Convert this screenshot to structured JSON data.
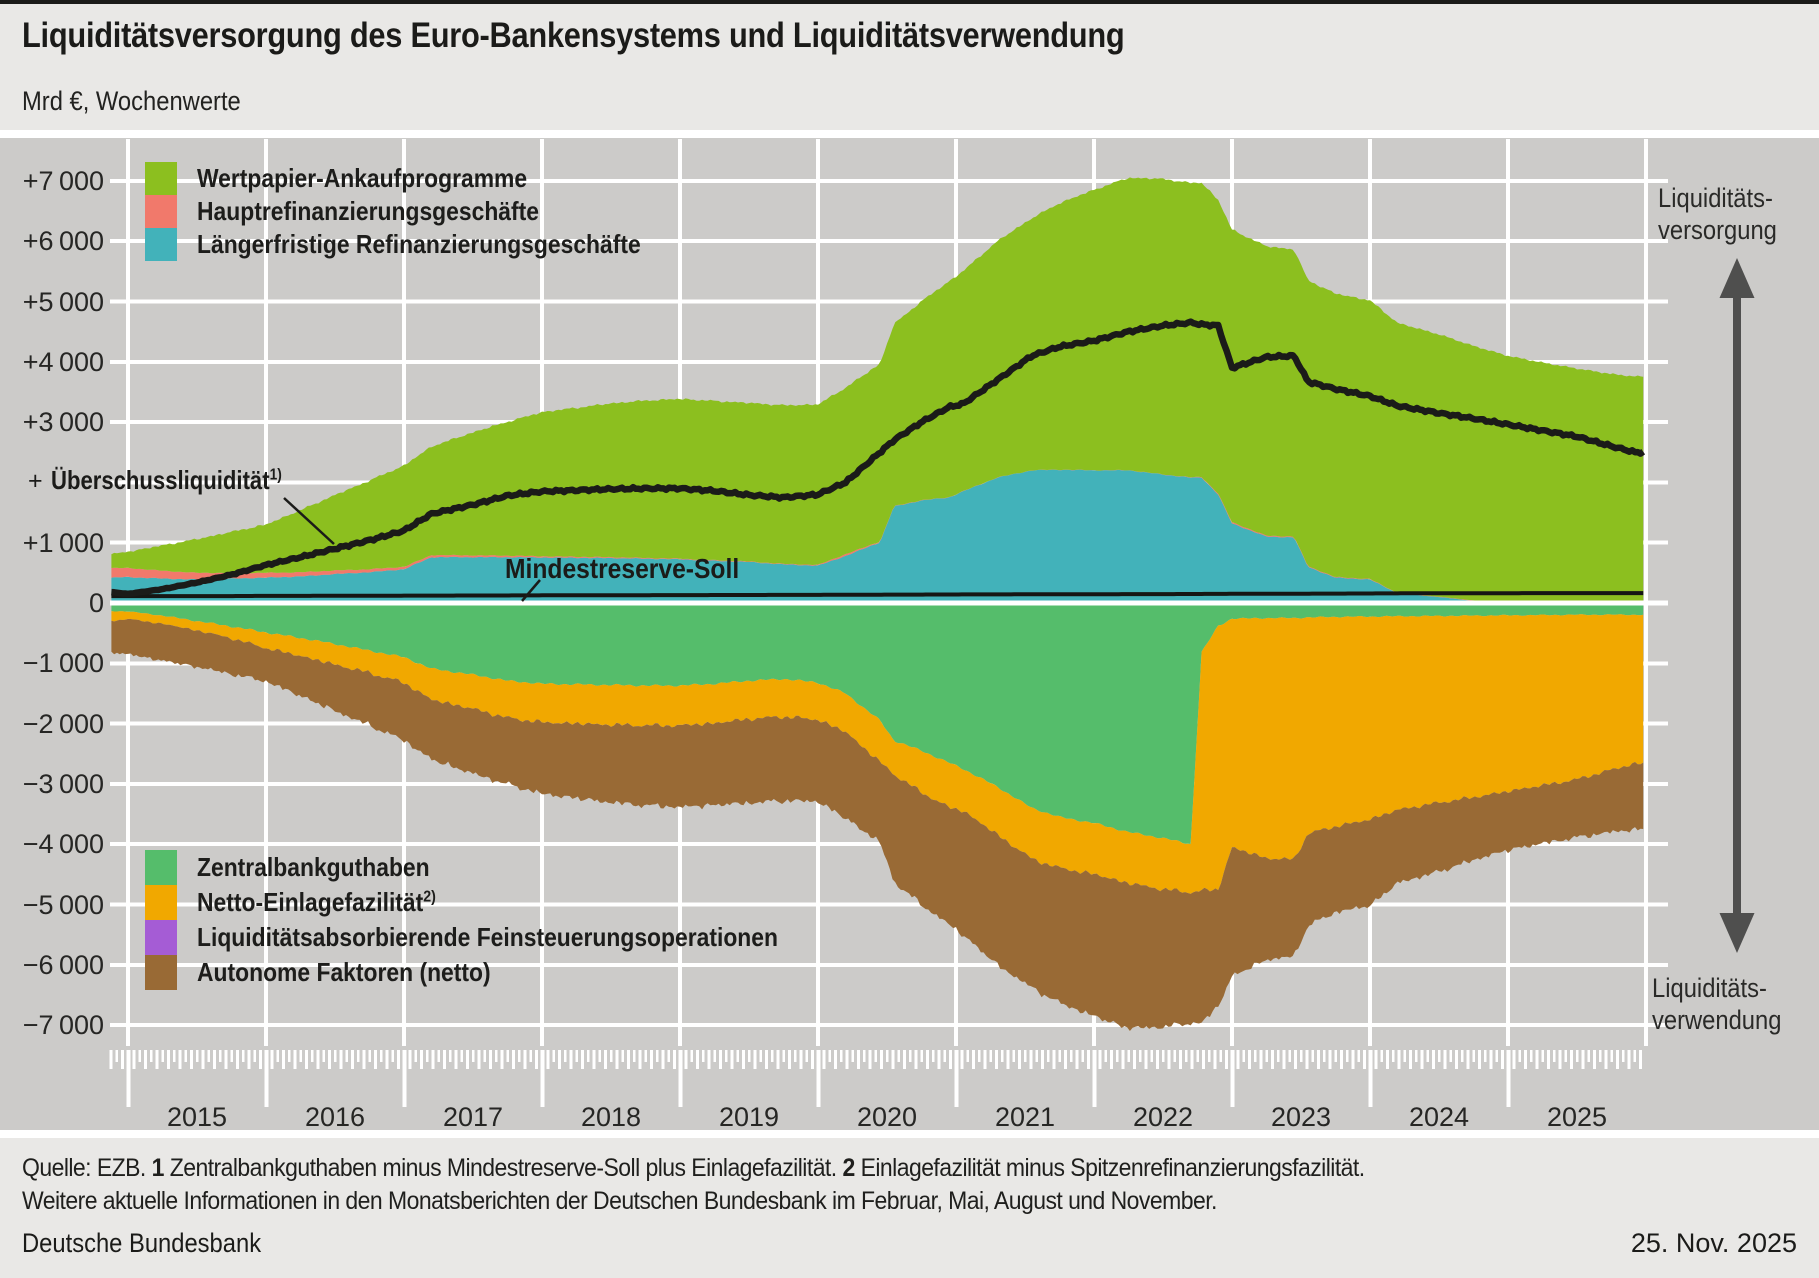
{
  "header": {
    "title": "Liquiditätsversorgung des Euro-Bankensystems und Liquiditätsverwendung",
    "subtitle": "Mrd €, Wochenwerte"
  },
  "colors": {
    "app": "#8cbf1f",
    "mro": "#f1796b",
    "ltro": "#42b2ba",
    "zbg": "#55bd6b",
    "depo": "#f1a800",
    "fine": "#a55cd5",
    "auto": "#996a35",
    "line": "#1b1b19",
    "grid": "#ffffff",
    "plot_bg": "#cccbc9",
    "panel_bg": "#e9e8e6",
    "arrow": "#4f4f4e"
  },
  "legend_top": {
    "items": [
      {
        "label": "Wertpapier-Ankaufprogramme",
        "sup": "",
        "color_key": "app"
      },
      {
        "label": "Hauptrefinanzierungsgeschäfte",
        "sup": "",
        "color_key": "mro"
      },
      {
        "label": "Längerfristige Refinanzierungsgeschäfte",
        "sup": "",
        "color_key": "ltro"
      }
    ]
  },
  "legend_bottom": {
    "items": [
      {
        "label": "Zentralbankguthaben",
        "sup": "",
        "color_key": "zbg"
      },
      {
        "label": "Netto-Einlagefazilität",
        "sup": "2)",
        "color_key": "depo"
      },
      {
        "label": "Liquiditätsabsorbierende Feinsteuerungsoperationen",
        "sup": "",
        "color_key": "fine"
      },
      {
        "label": "Autonome Faktoren (netto)",
        "sup": "",
        "color_key": "auto"
      }
    ]
  },
  "annotations": {
    "excess_plus": "+",
    "excess_label": "Überschussliquidität",
    "excess_sup": "1)",
    "reserve_label": "Mindestreserve-Soll",
    "supply_line1": "Liquiditäts-",
    "supply_line2": "versorgung",
    "use_line1": "Liquiditäts-",
    "use_line2": "verwendung"
  },
  "footer": {
    "source_prefix": "Quelle: EZB.",
    "fn1_num": "1",
    "fn1_text": "Zentralbankguthaben minus Mindestreserve-Soll plus Einlagefazilität.",
    "fn2_num": "2",
    "fn2_text": "Einlagefazilität minus Spitzenrefinanzierungsfazilität.",
    "line2": "Weitere aktuelle Informationen in den Monatsberichten der Deutschen Bundesbank im Februar, Mai, August und November.",
    "publisher": "Deutsche Bundesbank",
    "date": "25. Nov. 2025"
  },
  "chart_data": {
    "type": "area",
    "unit": "Mrd €, Wochenwerte",
    "stacking": "positive side = liquidity provision, negative side = liquidity use, values in Mrd EUR",
    "x_years": [
      2014.88,
      2015.0,
      2015.25,
      2015.5,
      2015.75,
      2016.0,
      2016.25,
      2016.5,
      2016.75,
      2017.0,
      2017.2,
      2017.5,
      2017.75,
      2018.0,
      2018.25,
      2018.5,
      2018.75,
      2019.0,
      2019.25,
      2019.5,
      2019.75,
      2020.0,
      2020.2,
      2020.45,
      2020.55,
      2020.75,
      2020.95,
      2021.05,
      2021.3,
      2021.55,
      2021.75,
      2022.0,
      2022.25,
      2022.5,
      2022.7,
      2022.78,
      2022.9,
      2023.0,
      2023.25,
      2023.45,
      2023.55,
      2023.75,
      2024.0,
      2024.2,
      2024.5,
      2024.75,
      2025.0,
      2025.25,
      2025.5,
      2025.75,
      2025.92
    ],
    "series": [
      {
        "id": "ltro",
        "name": "Längerfristige Refinanzierungsgeschäfte",
        "side": "positive",
        "stack_order": 1,
        "values": [
          420,
          430,
          405,
          390,
          405,
          420,
          440,
          480,
          510,
          560,
          760,
          760,
          760,
          755,
          750,
          745,
          735,
          725,
          700,
          680,
          640,
          620,
          780,
          1010,
          1600,
          1700,
          1750,
          1850,
          2080,
          2200,
          2210,
          2200,
          2200,
          2130,
          2080,
          2080,
          1800,
          1320,
          1100,
          1090,
          600,
          420,
          390,
          160,
          100,
          35,
          8,
          4,
          3,
          2,
          2
        ]
      },
      {
        "id": "mro",
        "name": "Hauptrefinanzierungsgeschäfte",
        "side": "positive",
        "stack_order": 2,
        "values": [
          160,
          150,
          130,
          110,
          95,
          80,
          70,
          60,
          50,
          40,
          35,
          30,
          25,
          20,
          17,
          15,
          12,
          10,
          10,
          8,
          8,
          12,
          30,
          10,
          5,
          5,
          3,
          3,
          2,
          2,
          2,
          2,
          2,
          3,
          5,
          10,
          15,
          20,
          15,
          12,
          12,
          10,
          8,
          5,
          5,
          8,
          10,
          12,
          15,
          15,
          15
        ]
      },
      {
        "id": "app",
        "name": "Wertpapier-Ankaufprogramme",
        "side": "positive",
        "stack_order": 3,
        "values": [
          230,
          270,
          420,
          560,
          680,
          800,
          1030,
          1250,
          1470,
          1680,
          1800,
          2040,
          2220,
          2390,
          2470,
          2550,
          2610,
          2650,
          2640,
          2630,
          2630,
          2660,
          2760,
          2950,
          3020,
          3300,
          3580,
          3650,
          3920,
          4180,
          4420,
          4650,
          4850,
          4900,
          4880,
          4880,
          4870,
          4850,
          4800,
          4760,
          4740,
          4700,
          4620,
          4480,
          4350,
          4220,
          4080,
          3970,
          3870,
          3780,
          3740
        ]
      },
      {
        "id": "zbg",
        "name": "Zentralbankguthaben",
        "side": "negative",
        "stack_order": 1,
        "values": [
          135,
          140,
          210,
          300,
          390,
          490,
          580,
          680,
          790,
          900,
          1090,
          1190,
          1290,
          1340,
          1350,
          1360,
          1370,
          1370,
          1340,
          1290,
          1260,
          1320,
          1500,
          1950,
          2280,
          2450,
          2650,
          2750,
          3050,
          3400,
          3550,
          3650,
          3800,
          3900,
          4000,
          820,
          380,
          260,
          250,
          250,
          240,
          230,
          225,
          220,
          215,
          210,
          205,
          200,
          195,
          195,
          195
        ]
      },
      {
        "id": "depo",
        "name": "Netto-Einlagefazilität",
        "side": "negative",
        "stack_order": 2,
        "values": [
          160,
          125,
          135,
          155,
          195,
          258,
          298,
          340,
          370,
          422,
          513,
          564,
          615,
          637,
          648,
          659,
          660,
          661,
          652,
          633,
          624,
          615,
          636,
          688,
          560,
          690,
          741,
          692,
          793,
          844,
          845,
          846,
          847,
          848,
          799,
          3950,
          4371,
          3792,
          3983,
          4004,
          3585,
          3476,
          3363,
          3210,
          3096,
          3012,
          2918,
          2824,
          2730,
          2570,
          2470
        ]
      },
      {
        "id": "fine",
        "name": "Liquiditätsabsorbierende Feinsteuerungsoperationen",
        "side": "negative",
        "stack_order": 3,
        "values": [
          0,
          0,
          0,
          0,
          0,
          0,
          0,
          0,
          0,
          0,
          0,
          0,
          0,
          0,
          0,
          0,
          0,
          0,
          0,
          0,
          0,
          0,
          0,
          0,
          0,
          0,
          0,
          0,
          0,
          0,
          0,
          0,
          0,
          0,
          0,
          0,
          0,
          0,
          0,
          0,
          0,
          0,
          0,
          0,
          0,
          0,
          0,
          0,
          0,
          0,
          0
        ]
      },
      {
        "id": "auto",
        "name": "Autonome Faktoren (netto)",
        "side": "negative",
        "stack_order": 4,
        "values": [
          515,
          585,
          610,
          605,
          595,
          552,
          662,
          770,
          870,
          958,
          992,
          1076,
          1100,
          1188,
          1239,
          1291,
          1327,
          1354,
          1358,
          1395,
          1394,
          1357,
          1434,
          1332,
          1785,
          1865,
          1942,
          2061,
          2159,
          2138,
          2237,
          2356,
          2405,
          2285,
          2166,
          2200,
          1934,
          2138,
          1682,
          1608,
          1527,
          1424,
          1430,
          1215,
          1144,
          1041,
          975,
          962,
          963,
          1032,
          1092
        ]
      }
    ],
    "lines": [
      {
        "id": "excess",
        "name": "Überschussliquidität 1)",
        "values": [
          180,
          150,
          230,
          340,
          470,
          630,
          760,
          900,
          1040,
          1200,
          1480,
          1630,
          1780,
          1850,
          1870,
          1890,
          1900,
          1900,
          1860,
          1790,
          1750,
          1800,
          2000,
          2500,
          2700,
          3000,
          3250,
          3300,
          3700,
          4100,
          4250,
          4350,
          4500,
          4600,
          4650,
          4620,
          4600,
          3900,
          4080,
          4100,
          3670,
          3550,
          3430,
          3270,
          3150,
          3060,
          2960,
          2860,
          2760,
          2600,
          2500
        ]
      },
      {
        "id": "reserve",
        "name": "Mindestreserve-Soll",
        "values": [
          115,
          115,
          115,
          115,
          115,
          118,
          118,
          120,
          120,
          122,
          123,
          124,
          125,
          127,
          128,
          129,
          130,
          131,
          132,
          133,
          134,
          135,
          136,
          138,
          140,
          140,
          141,
          142,
          143,
          144,
          145,
          146,
          147,
          148,
          149,
          150,
          151,
          152,
          153,
          154,
          155,
          156,
          158,
          160,
          161,
          162,
          163,
          164,
          165,
          165,
          165
        ]
      }
    ],
    "y_axis": {
      "min": -7000,
      "max": 7000,
      "tick_step": 1000,
      "grid": true,
      "tick_labels": [
        {
          "value": 7000,
          "label": "+7 000"
        },
        {
          "value": 6000,
          "label": "+6 000"
        },
        {
          "value": 5000,
          "label": "+5 000"
        },
        {
          "value": 4000,
          "label": "+4 000"
        },
        {
          "value": 3000,
          "label": "+3 000"
        },
        {
          "value": 1000,
          "label": "+1 000"
        },
        {
          "value": 0,
          "label": "0"
        },
        {
          "value": -1000,
          "label": "−1 000"
        },
        {
          "value": -2000,
          "label": "−2 000"
        },
        {
          "value": -3000,
          "label": "−3 000"
        },
        {
          "value": -4000,
          "label": "−4 000"
        },
        {
          "value": -5000,
          "label": "−5 000"
        },
        {
          "value": -6000,
          "label": "−6 000"
        },
        {
          "value": -7000,
          "label": "−7 000"
        }
      ]
    },
    "x_axis": {
      "year_labels": [
        "2015",
        "2016",
        "2017",
        "2018",
        "2019",
        "2020",
        "2021",
        "2022",
        "2023",
        "2024",
        "2025"
      ],
      "range_start": 2014.88,
      "range_end": 2025.98
    }
  }
}
